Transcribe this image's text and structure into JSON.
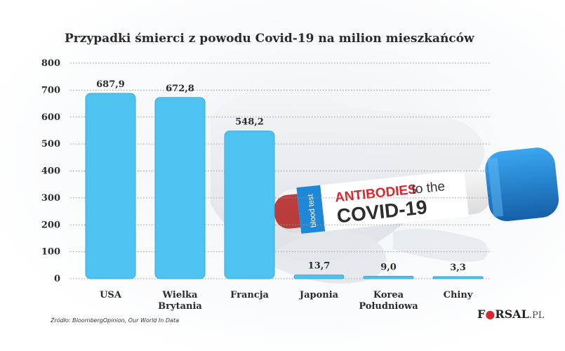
{
  "colors": {
    "bar": "#4fc3f0",
    "bar_stroke": "#3aa9d9",
    "text": "#2b2b2b",
    "tube_red": "#d9272e",
    "tube_cap": "#1e88d6"
  },
  "chart_data": {
    "type": "bar",
    "title": "Przypadki śmierci z powodu Covid-19 na milion mieszkańców",
    "categories": [
      [
        "USA"
      ],
      [
        "Wielka",
        "Brytania"
      ],
      [
        "Francja"
      ],
      [
        "Japonia"
      ],
      [
        "Korea",
        "Południowa"
      ],
      [
        "Chiny"
      ]
    ],
    "values": [
      687.9,
      672.8,
      548.2,
      13.7,
      9.0,
      3.3
    ],
    "value_labels": [
      "687,9",
      "672,8",
      "548,2",
      "13,7",
      "9,0",
      "3,3"
    ],
    "yticks": [
      "800",
      "700",
      "600",
      "500",
      "400",
      "300",
      "200",
      "100",
      "0"
    ],
    "ylim": [
      0,
      800
    ],
    "grid": true,
    "xlabel": "",
    "ylabel": ""
  },
  "source": "Źródło:  BloombergOpinion, Our World In Data",
  "logo": "FORSAL.PL",
  "photo": {
    "label_line1_red": "ANTIBODIES",
    "label_line1_rest": "to the",
    "label_line2": "COVID-19",
    "label_side": "blood test",
    "icons": [
      "test-tube-icon",
      "glove-hand-icon"
    ]
  }
}
